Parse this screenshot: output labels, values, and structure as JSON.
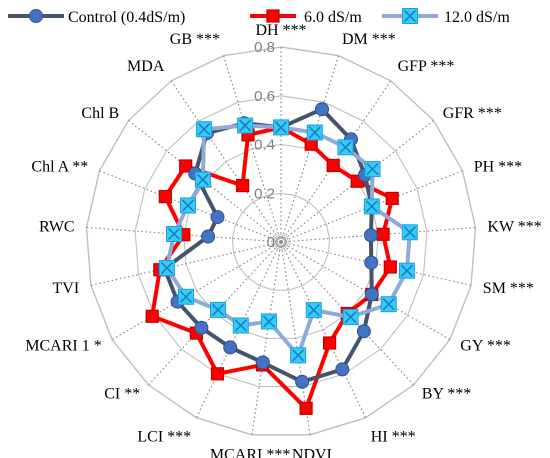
{
  "chart_data": {
    "type": "radar",
    "axes": [
      "DH ***",
      "DM ***",
      "GFP ***",
      "GFR ***",
      "PH ***",
      "KW ***",
      "SM ***",
      "GY ***",
      "BY ***",
      "HI ***",
      "NDVI",
      "MCARI ***",
      "LCI ***",
      "CI **",
      "MCARI 1 *",
      "TVI",
      "RWC",
      "Chl A **",
      "Chl B",
      "MDA",
      "GB ***"
    ],
    "rlim": [
      0,
      0.8
    ],
    "ticks": [
      0,
      0.2,
      0.4,
      0.6,
      0.8
    ],
    "tick_labels": [
      "0",
      "0.2",
      "0.4",
      "0.6",
      "0.8"
    ],
    "grid": true,
    "legend_position": "top",
    "series": [
      {
        "name": "Control (0.4dS/m)",
        "color": "#44546a",
        "marker": "circle",
        "values": [
          0.47,
          0.57,
          0.51,
          0.44,
          0.4,
          0.37,
          0.38,
          0.43,
          0.5,
          0.58,
          0.58,
          0.5,
          0.48,
          0.48,
          0.49,
          0.49,
          0.3,
          0.28,
          0.45,
          0.54,
          0.51
        ]
      },
      {
        "name": "6.0 dS/m",
        "color": "#ff0000",
        "marker": "square",
        "values": [
          0.47,
          0.42,
          0.38,
          0.4,
          0.49,
          0.42,
          0.46,
          0.43,
          0.4,
          0.46,
          0.69,
          0.51,
          0.6,
          0.51,
          0.61,
          0.51,
          0.4,
          0.51,
          0.5,
          0.28,
          0.46
        ]
      },
      {
        "name": "12.0 dS/m",
        "color": "#8eaadb",
        "marker": "x-square",
        "values": [
          0.47,
          0.47,
          0.47,
          0.48,
          0.4,
          0.53,
          0.53,
          0.51,
          0.42,
          0.31,
          0.47,
          0.33,
          0.38,
          0.38,
          0.45,
          0.48,
          0.44,
          0.41,
          0.41,
          0.56,
          0.5
        ]
      }
    ]
  }
}
